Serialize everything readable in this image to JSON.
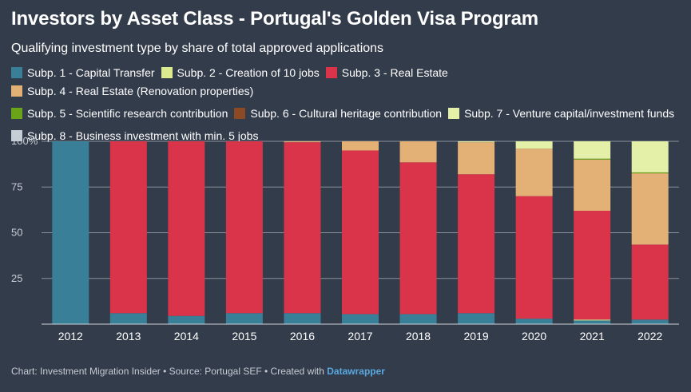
{
  "title": "Investors by Asset Class  - Portugal's Golden Visa Program",
  "subtitle": "Qualifying investment type by share of total approved applications",
  "footer": {
    "text": "Chart: Investment Migration Insider • Source: Portugal SEF • Created with ",
    "link": "Datawrapper"
  },
  "chart_data": {
    "type": "bar",
    "stacked": true,
    "categories": [
      "2012",
      "2013",
      "2014",
      "2015",
      "2016",
      "2017",
      "2018",
      "2019",
      "2020",
      "2021",
      "2022"
    ],
    "ylim": [
      0,
      100
    ],
    "yticks": [
      25,
      50,
      75,
      100
    ],
    "ytick_labels": [
      "25",
      "50",
      "75",
      "100%"
    ],
    "grid": true,
    "legend_position": "top",
    "series": [
      {
        "name": "Subp. 1 - Capital Transfer",
        "color": "#3a7f98",
        "values": [
          100,
          6,
          4.5,
          6,
          6,
          5.5,
          5.5,
          6,
          3,
          2,
          2.5
        ]
      },
      {
        "name": "Subp. 2 - Creation of 10 jobs",
        "color": "#dceb8f",
        "values": [
          0,
          0,
          0,
          0,
          0,
          0,
          0,
          0,
          0,
          0.5,
          0
        ]
      },
      {
        "name": "Subp. 3 - Real Estate",
        "color": "#d9344a",
        "values": [
          0,
          94,
          95.5,
          94,
          93.5,
          89.5,
          83,
          76,
          67,
          59.5,
          41
        ]
      },
      {
        "name": "Subp. 4 - Real Estate (Renovation properties)",
        "color": "#e3b175",
        "values": [
          0,
          0,
          0,
          0,
          0.5,
          5,
          11.5,
          17.5,
          26,
          28,
          39
        ]
      },
      {
        "name": "Subp. 5 - Scientific research contribution",
        "color": "#6aa418",
        "values": [
          0,
          0,
          0,
          0,
          0,
          0,
          0,
          0,
          0,
          0.5,
          0.5
        ]
      },
      {
        "name": "Subp. 6 - Cultural heritage contribution",
        "color": "#8c4a24",
        "values": [
          0,
          0,
          0,
          0,
          0,
          0,
          0,
          0,
          0,
          0,
          0
        ]
      },
      {
        "name": "Subp. 7 - Venture capital/investment funds",
        "color": "#e4efa7",
        "values": [
          0,
          0,
          0,
          0,
          0,
          0,
          0,
          0.5,
          4,
          9.5,
          17
        ]
      },
      {
        "name": "Subp. 8 - Business investment with min. 5 jobs",
        "color": "#c6ced6",
        "values": [
          0,
          0,
          0,
          0,
          0,
          0,
          0,
          0,
          0,
          0,
          0
        ]
      }
    ]
  }
}
